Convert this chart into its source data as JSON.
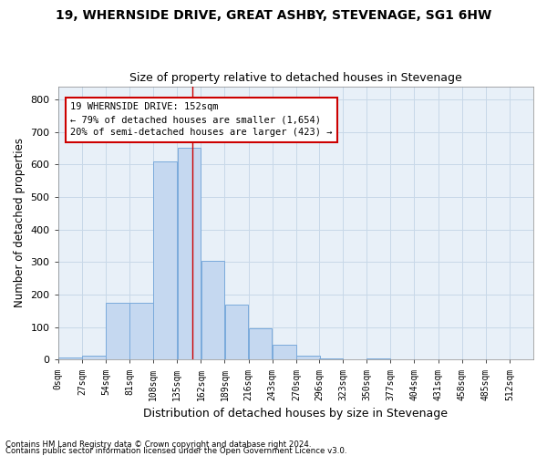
{
  "title": "19, WHERNSIDE DRIVE, GREAT ASHBY, STEVENAGE, SG1 6HW",
  "subtitle": "Size of property relative to detached houses in Stevenage",
  "xlabel": "Distribution of detached houses by size in Stevenage",
  "ylabel": "Number of detached properties",
  "bar_color": "#c5d8f0",
  "bar_edge_color": "#7aaadb",
  "grid_color": "#c8d8e8",
  "bg_color": "#e8f0f8",
  "vline_value": 152,
  "vline_color": "#cc0000",
  "bins": [
    0,
    27,
    54,
    81,
    108,
    135,
    162,
    189,
    216,
    243,
    270,
    296,
    323,
    350,
    377,
    404,
    431,
    458,
    485,
    512,
    539
  ],
  "bar_heights": [
    7,
    13,
    175,
    175,
    610,
    650,
    305,
    170,
    97,
    45,
    13,
    5,
    0,
    5,
    0,
    0,
    0,
    0,
    0,
    0
  ],
  "ylim": [
    0,
    840
  ],
  "yticks": [
    0,
    100,
    200,
    300,
    400,
    500,
    600,
    700,
    800
  ],
  "annotation_text": "19 WHERNSIDE DRIVE: 152sqm\n← 79% of detached houses are smaller (1,654)\n20% of semi-detached houses are larger (423) →",
  "annotation_box_color": "#ffffff",
  "annotation_box_edge": "#cc0000",
  "footnote1": "Contains HM Land Registry data © Crown copyright and database right 2024.",
  "footnote2": "Contains public sector information licensed under the Open Government Licence v3.0."
}
